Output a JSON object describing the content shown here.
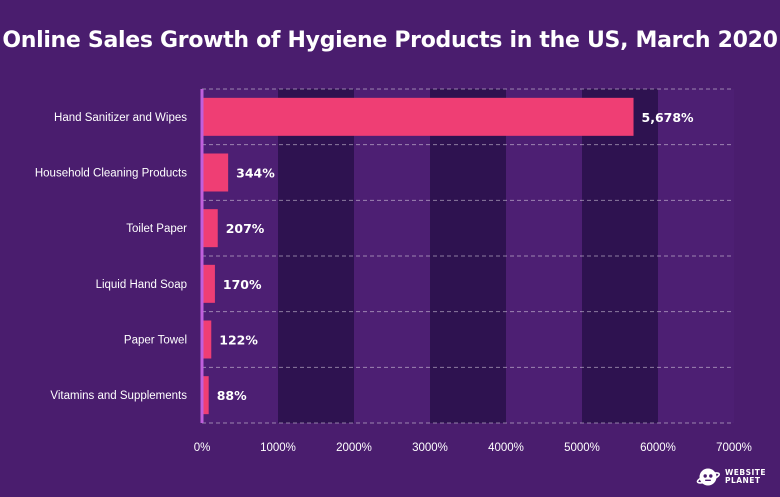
{
  "colors": {
    "background": "#4a1d6e",
    "band_light": "#4d1f73",
    "band_dark": "#2e1250",
    "bar": "#ef3e74",
    "axis_line": "#c05fdc",
    "text": "#ffffff"
  },
  "chart_data": {
    "type": "bar",
    "orientation": "horizontal",
    "title": "Online Sales Growth of Hygiene Products in the US, March 2020",
    "categories": [
      "Hand Sanitizer and Wipes",
      "Household Cleaning Products",
      "Toilet Paper",
      "Liquid Hand Soap",
      "Paper Towel",
      "Vitamins and Supplements"
    ],
    "values": [
      5678,
      344,
      207,
      170,
      122,
      88
    ],
    "value_labels": [
      "5,678%",
      "344%",
      "207%",
      "170%",
      "122%",
      "88%"
    ],
    "xlim": [
      0,
      7000
    ],
    "x_ticks": [
      0,
      1000,
      2000,
      3000,
      4000,
      5000,
      6000,
      7000
    ],
    "x_tick_labels": [
      "0%",
      "1000%",
      "2000%",
      "3000%",
      "4000%",
      "5000%",
      "6000%",
      "7000%"
    ],
    "xlabel": "",
    "ylabel": "",
    "grid": true,
    "legend": "none"
  },
  "logo": {
    "line1": "WEBSITE",
    "line2": "PLANET",
    "icon": "planet-robot-icon"
  }
}
